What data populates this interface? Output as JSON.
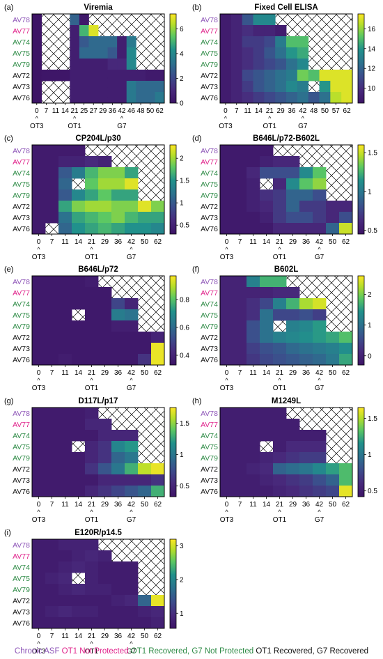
{
  "legend": {
    "groups": [
      {
        "label": "Chronic ASF",
        "color": "#8e56b8"
      },
      {
        "label": "OT1 Not Protected",
        "color": "#e0218a"
      },
      {
        "label": "OT1 Recovered, G7 Not Protected",
        "color": "#2e8b46"
      },
      {
        "label": "OT1 Recovered, G7 Recovered",
        "color": "#111111"
      }
    ]
  },
  "animals": [
    "AV78",
    "AV77",
    "AV74",
    "AV75",
    "AV79",
    "AV72",
    "AV73",
    "AV76"
  ],
  "animal_groups": [
    0,
    1,
    2,
    2,
    2,
    3,
    3,
    3
  ],
  "markers": [
    {
      "day": "0",
      "label": "OT3"
    },
    {
      "day": "21",
      "label": "OT1"
    },
    {
      "day": "42",
      "label": "G7"
    }
  ],
  "colors": {
    "hatch": "#000000",
    "grid_bg": "#ffffff"
  },
  "chart_data": [
    {
      "panel": "(a)",
      "title": "Viremia",
      "type": "heatmap",
      "x": [
        "0",
        "7",
        "11",
        "14",
        "21",
        "25",
        "27",
        "29",
        "36",
        "42",
        "46",
        "48",
        "50",
        "62"
      ],
      "colorbar": {
        "min": 0,
        "max": 7.2,
        "ticks": [
          0,
          2,
          4,
          6
        ]
      },
      "rows": [
        [
          0,
          null,
          null,
          null,
          2.8,
          0.2,
          null,
          null,
          null,
          null,
          null,
          null,
          null,
          null
        ],
        [
          0,
          null,
          null,
          null,
          0.5,
          5.0,
          6.8,
          null,
          null,
          null,
          null,
          null,
          null,
          null
        ],
        [
          0,
          null,
          null,
          null,
          0.5,
          2.5,
          3.0,
          3.0,
          3.0,
          0.5,
          3.5,
          null,
          null,
          null
        ],
        [
          0,
          null,
          null,
          null,
          0.5,
          3.0,
          3.0,
          3.0,
          2.5,
          0.5,
          4.0,
          null,
          null,
          null
        ],
        [
          0,
          null,
          null,
          null,
          0.5,
          0.5,
          0.5,
          0.5,
          1.0,
          1.0,
          4.0,
          null,
          null,
          null
        ],
        [
          0,
          0.1,
          0.1,
          0.1,
          0.5,
          0.5,
          0.5,
          0.5,
          0.5,
          0.5,
          0.5,
          0.5,
          0.3,
          0.3
        ],
        [
          0,
          null,
          null,
          null,
          0.5,
          0.5,
          0.5,
          0.5,
          0.5,
          0.5,
          3.5,
          3.0,
          3.0,
          3.0
        ],
        [
          0,
          null,
          null,
          null,
          0.5,
          0.5,
          0.5,
          0.5,
          0.5,
          0.5,
          3.5,
          3.0,
          3.0,
          3.5
        ]
      ]
    },
    {
      "panel": "(b)",
      "title": "Fixed Cell ELISA",
      "type": "heatmap",
      "x": [
        "0",
        "7",
        "11",
        "14",
        "21",
        "29",
        "36",
        "42",
        "48",
        "50",
        "57",
        "62"
      ],
      "colorbar": {
        "min": 8.5,
        "max": 17.5,
        "ticks": [
          10,
          12,
          14,
          16
        ]
      },
      "rows": [
        [
          9.0,
          9.5,
          11.5,
          13.5,
          13.5,
          null,
          null,
          null,
          null,
          null,
          null,
          null
        ],
        [
          9.0,
          9.5,
          10.0,
          9.5,
          9.5,
          9.0,
          null,
          null,
          null,
          null,
          null,
          null
        ],
        [
          9.0,
          9.5,
          10.5,
          10.5,
          11.0,
          13.0,
          15.0,
          15.0,
          null,
          null,
          null,
          null
        ],
        [
          9.0,
          9.5,
          10.0,
          10.5,
          11.5,
          12.5,
          14.0,
          14.5,
          null,
          null,
          null,
          null
        ],
        [
          9.0,
          9.5,
          10.0,
          10.5,
          11.0,
          11.5,
          12.5,
          13.5,
          null,
          null,
          null,
          null
        ],
        [
          9.0,
          9.5,
          11.0,
          11.5,
          12.0,
          12.5,
          13.0,
          15.5,
          15.0,
          17.0,
          17.0,
          17.0
        ],
        [
          9.0,
          9.5,
          10.5,
          11.5,
          12.0,
          12.5,
          13.5,
          13.0,
          null,
          14.0,
          17.0,
          17.0
        ],
        [
          9.0,
          9.5,
          10.0,
          10.5,
          11.0,
          11.5,
          12.0,
          12.5,
          11.5,
          12.5,
          16.5,
          17.0
        ]
      ]
    },
    {
      "panel": "(c)",
      "title": "CP204L/p30",
      "type": "heatmap",
      "x": [
        "0",
        "7",
        "11",
        "14",
        "21",
        "29",
        "36",
        "42",
        "50",
        "62"
      ],
      "colorbar": {
        "min": 0.3,
        "max": 2.3,
        "ticks": [
          0.5,
          1.0,
          1.5,
          2.0
        ]
      },
      "rows": [
        [
          0.4,
          0.4,
          0.4,
          0.4,
          null,
          null,
          null,
          null,
          null,
          null
        ],
        [
          0.4,
          0.4,
          0.5,
          0.5,
          0.6,
          0.5,
          null,
          null,
          null,
          null
        ],
        [
          0.4,
          0.4,
          1.0,
          1.3,
          1.7,
          1.9,
          1.9,
          1.6,
          null,
          null
        ],
        [
          0.4,
          0.4,
          1.1,
          null,
          1.8,
          2.0,
          2.0,
          2.2,
          null,
          null
        ],
        [
          0.4,
          0.4,
          1.0,
          1.4,
          1.6,
          1.8,
          1.6,
          1.6,
          null,
          null
        ],
        [
          0.4,
          0.4,
          1.6,
          1.9,
          2.0,
          2.0,
          1.9,
          1.9,
          2.2,
          1.9
        ],
        [
          0.4,
          0.4,
          1.2,
          1.6,
          1.7,
          1.8,
          1.9,
          1.7,
          1.6,
          1.6
        ],
        [
          0.4,
          null,
          1.1,
          1.5,
          1.6,
          1.7,
          1.6,
          1.5,
          1.5,
          1.4
        ]
      ]
    },
    {
      "panel": "(d)",
      "title": "B646L/p72-B602L",
      "type": "heatmap",
      "x": [
        "0",
        "7",
        "11",
        "14",
        "21",
        "29",
        "36",
        "42",
        "50",
        "62"
      ],
      "colorbar": {
        "min": 0.45,
        "max": 1.6,
        "ticks": [
          0.5,
          1.0,
          1.5
        ]
      },
      "rows": [
        [
          0.5,
          0.5,
          0.5,
          0.5,
          null,
          null,
          null,
          null,
          null,
          null
        ],
        [
          0.5,
          0.5,
          0.5,
          0.55,
          0.6,
          0.6,
          null,
          null,
          null,
          null
        ],
        [
          0.5,
          0.5,
          0.6,
          0.8,
          0.8,
          0.8,
          1.1,
          1.3,
          null,
          null
        ],
        [
          0.5,
          0.5,
          0.55,
          null,
          0.6,
          1.1,
          1.3,
          1.4,
          null,
          null
        ],
        [
          0.5,
          0.5,
          0.55,
          0.65,
          0.7,
          0.9,
          0.9,
          0.8,
          null,
          null
        ],
        [
          0.5,
          0.5,
          0.55,
          0.6,
          0.7,
          0.9,
          0.7,
          0.7,
          0.6,
          0.6
        ],
        [
          0.5,
          0.5,
          0.5,
          0.55,
          0.7,
          0.8,
          0.8,
          0.7,
          0.6,
          0.8
        ],
        [
          0.5,
          0.5,
          0.5,
          0.5,
          0.6,
          0.6,
          0.6,
          0.6,
          0.9,
          1.5
        ]
      ]
    },
    {
      "panel": "(e)",
      "title": "B646L/p72",
      "type": "heatmap",
      "x": [
        "0",
        "7",
        "11",
        "14",
        "21",
        "29",
        "36",
        "42",
        "50",
        "62"
      ],
      "colorbar": {
        "min": 0.33,
        "max": 0.97,
        "ticks": [
          0.4,
          0.6,
          0.8
        ]
      },
      "rows": [
        [
          0.35,
          0.35,
          0.35,
          0.35,
          0.37,
          null,
          null,
          null,
          null,
          null
        ],
        [
          0.35,
          0.35,
          0.35,
          0.35,
          0.35,
          0.35,
          null,
          null,
          null,
          null
        ],
        [
          0.35,
          0.35,
          0.35,
          0.35,
          0.35,
          0.35,
          0.5,
          0.4,
          null,
          null
        ],
        [
          0.35,
          0.35,
          0.35,
          null,
          0.35,
          0.35,
          0.65,
          0.62,
          null,
          null
        ],
        [
          0.35,
          0.35,
          0.35,
          0.35,
          0.35,
          0.35,
          0.38,
          0.38,
          null,
          null
        ],
        [
          0.35,
          0.35,
          0.35,
          0.35,
          0.35,
          0.35,
          0.35,
          0.35,
          0.35,
          0.4
        ],
        [
          0.35,
          0.35,
          0.35,
          0.35,
          0.35,
          0.35,
          0.35,
          0.35,
          0.35,
          0.95
        ],
        [
          0.35,
          0.35,
          0.37,
          0.35,
          0.35,
          0.35,
          0.35,
          0.35,
          0.45,
          0.95
        ]
      ]
    },
    {
      "panel": "(f)",
      "title": "B602L",
      "type": "heatmap",
      "x": [
        "0",
        "7",
        "11",
        "14",
        "21",
        "29",
        "36",
        "42",
        "50",
        "62"
      ],
      "colorbar": {
        "min": -0.3,
        "max": 2.6,
        "ticks": [
          0,
          1,
          2
        ]
      },
      "rows": [
        [
          0,
          0,
          1.2,
          1.7,
          1.7,
          null,
          null,
          null,
          null,
          null
        ],
        [
          0,
          0,
          0,
          0,
          0.1,
          0.1,
          null,
          null,
          null,
          null
        ],
        [
          0,
          0,
          0.2,
          0.5,
          1.2,
          1.7,
          2.2,
          2.4,
          null,
          null
        ],
        [
          0,
          0,
          0.2,
          1.0,
          0.5,
          0.5,
          0.6,
          0.4,
          null,
          null
        ],
        [
          0,
          0,
          0.6,
          1.0,
          null,
          1.2,
          1.3,
          1.5,
          null,
          null
        ],
        [
          0,
          0,
          0.6,
          1.0,
          1.2,
          1.3,
          1.4,
          1.5,
          1.6,
          1.8
        ],
        [
          0,
          0,
          0.4,
          0.6,
          0.7,
          0.9,
          1.0,
          1.1,
          1.2,
          1.4
        ],
        [
          0,
          0,
          0.3,
          0.5,
          0.6,
          0.7,
          0.8,
          0.9,
          1.1,
          1.6
        ]
      ]
    },
    {
      "panel": "(g)",
      "title": "D117L/p17",
      "type": "heatmap",
      "x": [
        "0",
        "7",
        "11",
        "14",
        "21",
        "29",
        "36",
        "42",
        "50",
        "62"
      ],
      "colorbar": {
        "min": 0.33,
        "max": 1.75,
        "ticks": [
          0.5,
          1.0,
          1.5
        ]
      },
      "rows": [
        [
          0.4,
          0.4,
          0.4,
          0.4,
          0.45,
          null,
          null,
          null,
          null,
          null
        ],
        [
          0.4,
          0.4,
          0.4,
          0.4,
          0.5,
          0.5,
          null,
          null,
          null,
          null
        ],
        [
          0.4,
          0.4,
          0.4,
          0.4,
          0.4,
          0.5,
          0.5,
          0.5,
          null,
          null
        ],
        [
          0.4,
          0.4,
          0.4,
          null,
          0.5,
          0.6,
          1.1,
          1.2,
          null,
          null
        ],
        [
          0.4,
          0.4,
          0.4,
          0.4,
          0.5,
          0.6,
          0.9,
          1.0,
          null,
          null
        ],
        [
          0.4,
          0.4,
          0.4,
          0.4,
          0.6,
          0.8,
          1.0,
          1.3,
          1.6,
          1.7
        ],
        [
          0.4,
          0.4,
          0.4,
          0.4,
          0.4,
          0.5,
          0.5,
          0.5,
          0.5,
          0.6
        ],
        [
          0.4,
          0.4,
          0.4,
          0.4,
          0.5,
          0.6,
          0.7,
          0.8,
          0.9,
          1.3
        ]
      ]
    },
    {
      "panel": "(h)",
      "title": "M1249L",
      "type": "heatmap",
      "x": [
        "0",
        "7",
        "11",
        "14",
        "21",
        "29",
        "36",
        "42",
        "50",
        "62"
      ],
      "colorbar": {
        "min": 0.42,
        "max": 1.65,
        "ticks": [
          0.5,
          1.0,
          1.5
        ]
      },
      "rows": [
        [
          0.5,
          0.5,
          0.5,
          0.5,
          0.5,
          null,
          null,
          null,
          null,
          null
        ],
        [
          0.5,
          0.5,
          0.5,
          0.5,
          0.5,
          0.5,
          null,
          null,
          null,
          null
        ],
        [
          0.5,
          0.5,
          0.5,
          0.5,
          0.5,
          0.5,
          0.5,
          0.5,
          null,
          null
        ],
        [
          0.5,
          0.5,
          0.5,
          null,
          0.5,
          0.6,
          0.6,
          0.6,
          null,
          null
        ],
        [
          0.5,
          0.5,
          0.5,
          0.55,
          0.6,
          0.65,
          0.7,
          0.7,
          null,
          null
        ],
        [
          0.5,
          0.5,
          0.55,
          0.6,
          0.9,
          0.95,
          1.0,
          1.1,
          1.2,
          1.3
        ],
        [
          0.5,
          0.5,
          0.5,
          0.55,
          0.6,
          0.65,
          0.7,
          0.8,
          0.9,
          1.3
        ],
        [
          0.5,
          0.5,
          0.5,
          0.5,
          0.55,
          0.6,
          0.65,
          0.7,
          0.75,
          1.6
        ]
      ]
    },
    {
      "panel": "(i)",
      "title": "E120R/p14.5",
      "type": "heatmap",
      "x": [
        "0",
        "7",
        "11",
        "14",
        "21",
        "29",
        "36",
        "42",
        "50",
        "62"
      ],
      "colorbar": {
        "min": 0.55,
        "max": 3.2,
        "ticks": [
          1,
          2,
          3
        ]
      },
      "rows": [
        [
          0.7,
          0.7,
          0.8,
          0.8,
          0.8,
          null,
          null,
          null,
          null,
          null
        ],
        [
          0.7,
          0.7,
          0.7,
          0.8,
          0.9,
          0.8,
          null,
          null,
          null,
          null
        ],
        [
          0.7,
          0.7,
          0.8,
          0.9,
          0.8,
          0.7,
          0.7,
          0.7,
          null,
          null
        ],
        [
          0.7,
          0.8,
          0.9,
          null,
          0.8,
          0.7,
          0.7,
          0.7,
          null,
          null
        ],
        [
          0.7,
          0.7,
          0.8,
          0.9,
          0.8,
          0.8,
          0.7,
          0.7,
          null,
          null
        ],
        [
          0.7,
          0.7,
          0.7,
          0.7,
          0.7,
          0.7,
          0.8,
          0.9,
          1.6,
          3.1
        ],
        [
          0.7,
          0.8,
          0.9,
          0.8,
          0.8,
          0.7,
          0.7,
          0.7,
          0.8,
          0.9
        ],
        [
          0.7,
          0.7,
          0.7,
          0.7,
          0.7,
          0.7,
          0.7,
          0.7,
          0.7,
          0.8
        ]
      ]
    }
  ]
}
